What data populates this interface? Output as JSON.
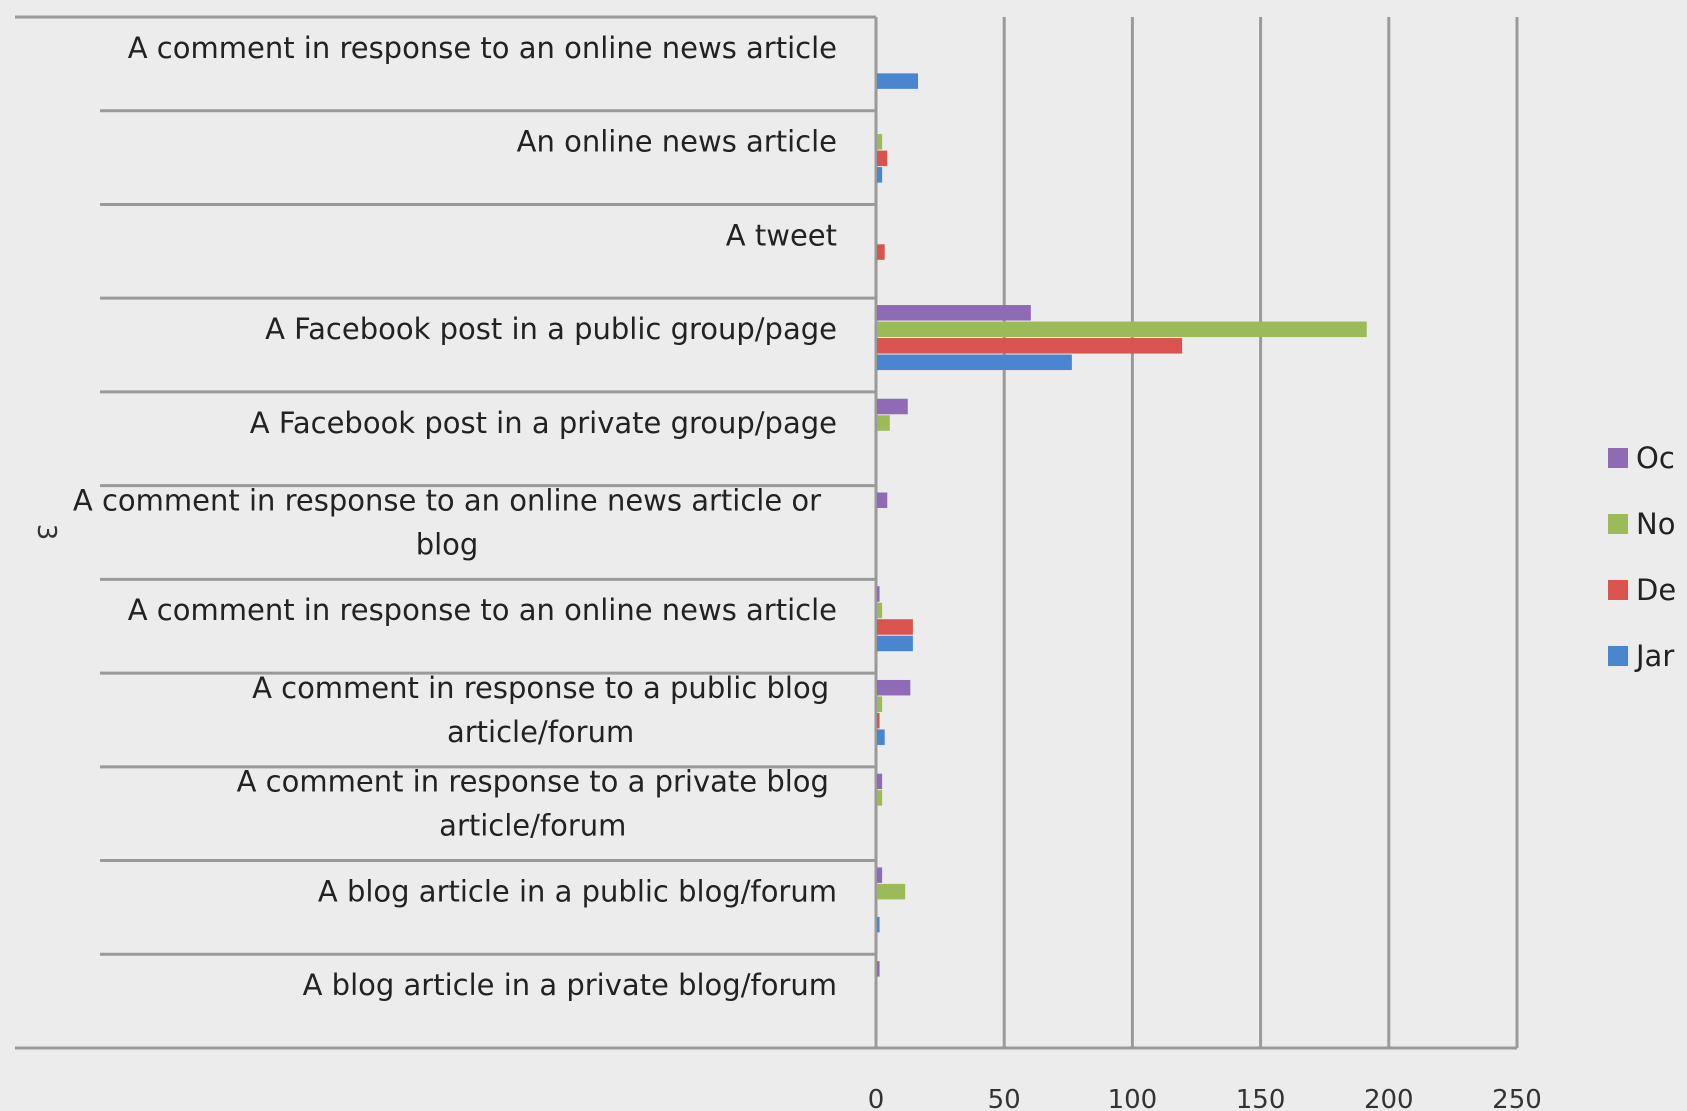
{
  "chart_data": {
    "type": "bar",
    "orientation": "horizontal",
    "group_label": "3",
    "categories": [
      "A comment in response to an online news article",
      "An online news article",
      "A tweet",
      "A Facebook post in a public group/page",
      "A Facebook post in a private group/page",
      "A comment in response to an online news article or blog",
      "A comment in response to an online news article",
      "A comment in response to a public blog article/forum",
      "A comment in response to a private blog article/forum",
      "A blog article in a public blog/forum",
      "A blog article in a private blog/forum"
    ],
    "series": [
      {
        "name": "Oc",
        "color": "#8e6bb4",
        "values": [
          0,
          0,
          0,
          60,
          12,
          4,
          1,
          13,
          2,
          2,
          1
        ]
      },
      {
        "name": "No",
        "color": "#9bbb59",
        "values": [
          0,
          2,
          0,
          191,
          5,
          0,
          2,
          2,
          2,
          11,
          0
        ]
      },
      {
        "name": "De",
        "color": "#d9534f",
        "values": [
          0,
          4,
          3,
          119,
          0,
          0,
          14,
          1,
          0,
          0,
          0
        ]
      },
      {
        "name": "Jar",
        "color": "#4a86cf",
        "values": [
          16,
          2,
          0,
          76,
          0,
          0,
          14,
          3,
          0,
          1,
          0
        ]
      }
    ],
    "xlim": [
      0,
      250
    ],
    "xticks": [
      "0",
      "50",
      "100",
      "150",
      "200",
      "250"
    ],
    "grid": true,
    "legend": "right",
    "title": "",
    "xlabel": "",
    "ylabel": ""
  }
}
